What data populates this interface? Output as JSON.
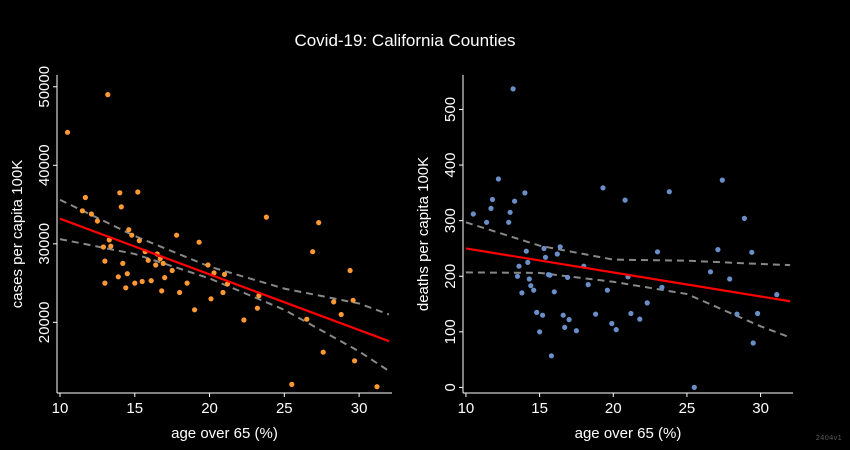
{
  "figure": {
    "title": "Covid-19: California Counties",
    "watermark": "2404v1"
  },
  "chart_data": [
    {
      "type": "scatter",
      "xlabel": "age over 65 (%)",
      "ylabel": "cases per capita 100K",
      "xlim": [
        9.8,
        32.2
      ],
      "ylim": [
        11000,
        51500
      ],
      "xticks": [
        10,
        15,
        20,
        25,
        30
      ],
      "yticks": [
        20000,
        30000,
        40000,
        50000
      ],
      "point_color": "#ff9933",
      "fit_color": "#ff0000",
      "ci_color": "#888888",
      "fit": {
        "x": [
          10,
          32
        ],
        "y": [
          33200,
          17600
        ]
      },
      "ci_upper": {
        "x": [
          10,
          15,
          20,
          25,
          30,
          32
        ],
        "y": [
          35600,
          31000,
          27100,
          24300,
          22400,
          21000
        ]
      },
      "ci_lower": {
        "x": [
          10,
          15,
          20,
          25,
          30,
          32
        ],
        "y": [
          30600,
          28700,
          25600,
          21600,
          16300,
          13800
        ]
      },
      "points": [
        [
          10.5,
          44200
        ],
        [
          13.2,
          49000
        ],
        [
          11.5,
          34200
        ],
        [
          11.7,
          35900
        ],
        [
          12.1,
          33800
        ],
        [
          12.5,
          32900
        ],
        [
          12.9,
          29600
        ],
        [
          13.3,
          30500
        ],
        [
          13.0,
          27800
        ],
        [
          13.0,
          25000
        ],
        [
          13.4,
          29700
        ],
        [
          13.9,
          25800
        ],
        [
          14.0,
          36500
        ],
        [
          14.1,
          34700
        ],
        [
          14.2,
          27500
        ],
        [
          14.4,
          24400
        ],
        [
          14.5,
          26200
        ],
        [
          14.6,
          31800
        ],
        [
          14.8,
          31100
        ],
        [
          15.0,
          25000
        ],
        [
          15.2,
          36600
        ],
        [
          15.3,
          30400
        ],
        [
          15.5,
          25200
        ],
        [
          15.7,
          29000
        ],
        [
          15.9,
          27900
        ],
        [
          16.1,
          25300
        ],
        [
          16.4,
          27300
        ],
        [
          16.5,
          28700
        ],
        [
          16.7,
          28100
        ],
        [
          16.8,
          24000
        ],
        [
          16.9,
          27500
        ],
        [
          17.0,
          25700
        ],
        [
          17.5,
          26600
        ],
        [
          17.8,
          31100
        ],
        [
          18.0,
          23800
        ],
        [
          18.5,
          25000
        ],
        [
          19.0,
          21600
        ],
        [
          19.3,
          30200
        ],
        [
          19.9,
          27300
        ],
        [
          20.1,
          23000
        ],
        [
          20.3,
          26300
        ],
        [
          20.9,
          23800
        ],
        [
          21.0,
          26100
        ],
        [
          21.2,
          24900
        ],
        [
          22.3,
          20300
        ],
        [
          23.2,
          21800
        ],
        [
          23.3,
          23400
        ],
        [
          23.8,
          33400
        ],
        [
          25.5,
          12100
        ],
        [
          26.5,
          20400
        ],
        [
          26.9,
          29000
        ],
        [
          27.3,
          32700
        ],
        [
          27.6,
          16200
        ],
        [
          28.3,
          22600
        ],
        [
          28.8,
          21000
        ],
        [
          29.4,
          26600
        ],
        [
          29.6,
          22800
        ],
        [
          29.7,
          15100
        ],
        [
          31.2,
          11800
        ]
      ]
    },
    {
      "type": "scatter",
      "xlabel": "age over 65 (%)",
      "ylabel": "deaths per capita 100K",
      "xlim": [
        9.8,
        32.2
      ],
      "ylim": [
        -10,
        562
      ],
      "xticks": [
        10,
        15,
        20,
        25,
        30
      ],
      "yticks": [
        0,
        100,
        200,
        300,
        400,
        500
      ],
      "point_color": "#6a8fc8",
      "fit_color": "#ff0000",
      "ci_color": "#888888",
      "fit": {
        "x": [
          10,
          32
        ],
        "y": [
          250,
          155
        ]
      },
      "ci_upper": {
        "x": [
          10,
          15,
          20,
          25,
          30,
          32
        ],
        "y": [
          297,
          255,
          230,
          228,
          222,
          220
        ]
      },
      "ci_lower": {
        "x": [
          10,
          15,
          20,
          25,
          30,
          32
        ],
        "y": [
          207,
          206,
          190,
          168,
          110,
          90
        ]
      },
      "points": [
        [
          10.5,
          312
        ],
        [
          11.4,
          297
        ],
        [
          11.7,
          322
        ],
        [
          11.8,
          338
        ],
        [
          12.2,
          375
        ],
        [
          12.9,
          297
        ],
        [
          13.0,
          315
        ],
        [
          13.2,
          537
        ],
        [
          13.3,
          335
        ],
        [
          13.5,
          200
        ],
        [
          13.6,
          218
        ],
        [
          13.8,
          170
        ],
        [
          14.0,
          350
        ],
        [
          14.1,
          245
        ],
        [
          14.2,
          225
        ],
        [
          14.3,
          195
        ],
        [
          14.4,
          183
        ],
        [
          14.6,
          175
        ],
        [
          14.8,
          135
        ],
        [
          15.0,
          100
        ],
        [
          15.2,
          130
        ],
        [
          15.3,
          250
        ],
        [
          15.4,
          234
        ],
        [
          15.6,
          203
        ],
        [
          15.7,
          202
        ],
        [
          15.8,
          57
        ],
        [
          16.0,
          172
        ],
        [
          16.2,
          240
        ],
        [
          16.4,
          253
        ],
        [
          16.6,
          130
        ],
        [
          16.7,
          108
        ],
        [
          16.9,
          198
        ],
        [
          17.0,
          122
        ],
        [
          17.5,
          102
        ],
        [
          18.0,
          218
        ],
        [
          18.3,
          185
        ],
        [
          18.8,
          132
        ],
        [
          19.3,
          359
        ],
        [
          19.6,
          175
        ],
        [
          19.9,
          115
        ],
        [
          20.2,
          104
        ],
        [
          20.8,
          337
        ],
        [
          21.0,
          199
        ],
        [
          21.2,
          133
        ],
        [
          21.8,
          123
        ],
        [
          22.3,
          152
        ],
        [
          23.0,
          244
        ],
        [
          23.3,
          180
        ],
        [
          23.8,
          352
        ],
        [
          25.5,
          0
        ],
        [
          26.6,
          208
        ],
        [
          27.1,
          248
        ],
        [
          27.4,
          373
        ],
        [
          27.9,
          195
        ],
        [
          28.4,
          132
        ],
        [
          28.9,
          304
        ],
        [
          29.4,
          243
        ],
        [
          29.5,
          80
        ],
        [
          29.8,
          133
        ],
        [
          31.1,
          167
        ]
      ]
    }
  ]
}
